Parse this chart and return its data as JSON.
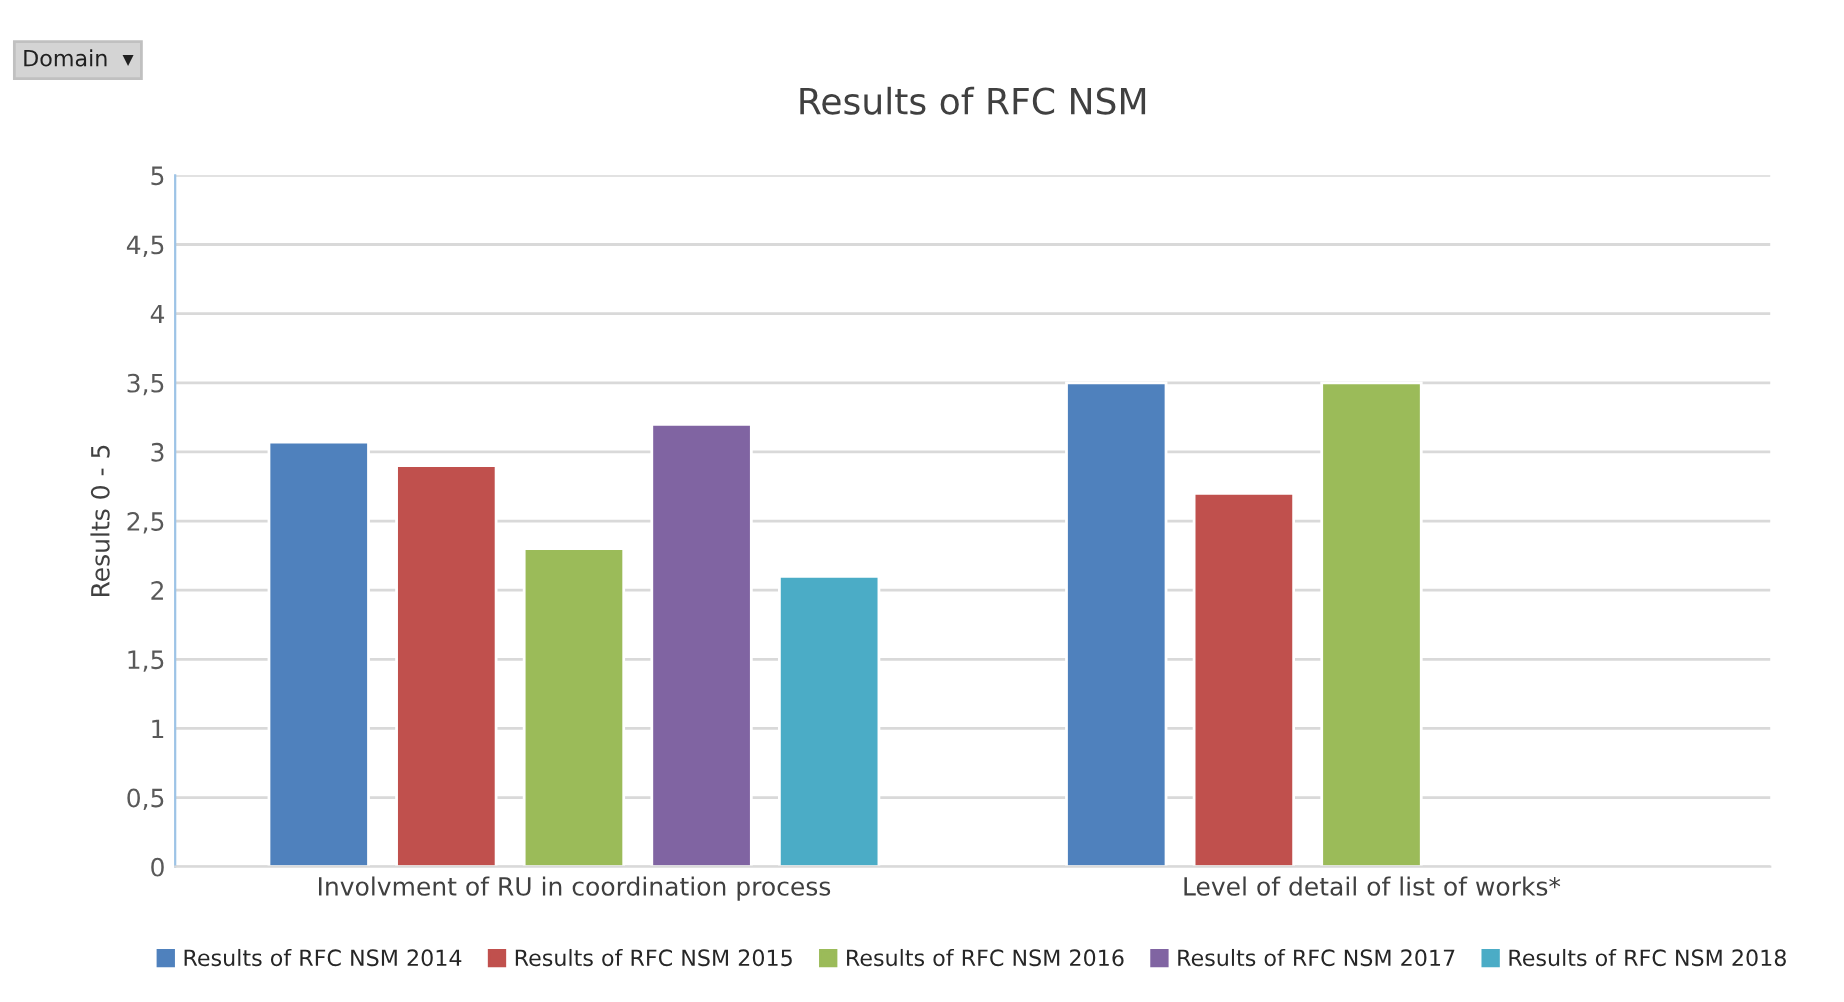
{
  "chart_data": {
    "type": "bar",
    "title": "Results of RFC NSM",
    "ylabel": "Results 0 - 5",
    "categories": [
      "Involvment of RU in coordination process",
      "Level of detail of list of works*"
    ],
    "series": [
      {
        "name": "Results of RFC NSM 2014",
        "color": "#4f81bd",
        "values": [
          3.07,
          3.5
        ]
      },
      {
        "name": "Results of RFC NSM 2015",
        "color": "#c0504d",
        "values": [
          2.9,
          2.7
        ]
      },
      {
        "name": "Results of RFC NSM 2016",
        "color": "#9bbb59",
        "values": [
          2.3,
          3.5
        ]
      },
      {
        "name": "Results of RFC NSM 2017",
        "color": "#8064a2",
        "values": [
          3.2,
          null
        ]
      },
      {
        "name": "Results of RFC NSM 2018",
        "color": "#4bacc6",
        "values": [
          2.1,
          null
        ]
      }
    ],
    "ylim": [
      0,
      5
    ],
    "yticks": [
      0,
      {
        "value": 0.5,
        "label": "0,5"
      },
      1,
      {
        "value": 1.5,
        "label": "1,5"
      },
      2,
      {
        "value": 2.5,
        "label": "2,5"
      },
      3,
      {
        "value": 3.5,
        "label": "3,5"
      },
      4,
      {
        "value": 4.5,
        "label": "4,5"
      },
      5
    ],
    "grid": "y",
    "legend": "bottom",
    "annotations": [
      "Domain  ▾"
    ]
  }
}
